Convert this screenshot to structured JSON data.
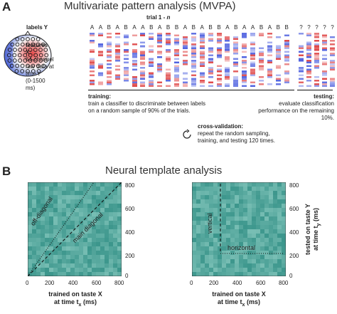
{
  "panelA": {
    "letter": "A",
    "title": "Multivariate pattern analysis (MVPA)",
    "trial_label_prefix": "trial 1 - ",
    "trial_label_n": "n",
    "labels_y": "labels Y",
    "labels": [
      "A",
      "A",
      "B",
      "A",
      "B",
      "A",
      "A",
      "B",
      "A",
      "B",
      "B",
      "A",
      "B",
      "A",
      "B",
      "B",
      "A",
      "B",
      "A",
      "A",
      "B",
      "A",
      "B",
      "B"
    ],
    "test_labels": [
      "?",
      "?",
      "?",
      "?",
      "?"
    ],
    "features_title": "features X:",
    "features_desc": [
      "64-channel",
      "raw data at",
      "time t",
      "(0-1500 ms)"
    ],
    "training_title": "training:",
    "training_desc": [
      "train a classifier to discriminate between labels",
      "on a random sample of 90% of the trials."
    ],
    "testing_title": "testing:",
    "testing_desc": [
      "evaluate classification",
      "performance on the remaining 10%."
    ],
    "cv_title": "cross-validation:",
    "cv_desc": [
      "repeat the random sampling,",
      "training, and testing 120 times."
    ]
  },
  "panelB": {
    "letter": "B",
    "title": "Neural template analysis",
    "left": {
      "off_diagonal": "off-diagonal",
      "main_diagonal": "main diagonal"
    },
    "right": {
      "vertical": "vertical",
      "horizontal": "horizontal",
      "ylabel_line1": "tested on taste Y",
      "ylabel_line2_prefix": "at time t",
      "ylabel_sub": "y",
      "ylabel_unit": " (ms)"
    },
    "xlabel_line1": "trained on taste X",
    "xlabel_line2_prefix": "at time t",
    "xlabel_sub": "x",
    "xlabel_unit": " (ms)",
    "x_ticks": [
      "0",
      "200",
      "400",
      "600",
      "800"
    ],
    "y_ticks": [
      "0",
      "200",
      "400",
      "600",
      "800"
    ]
  }
}
